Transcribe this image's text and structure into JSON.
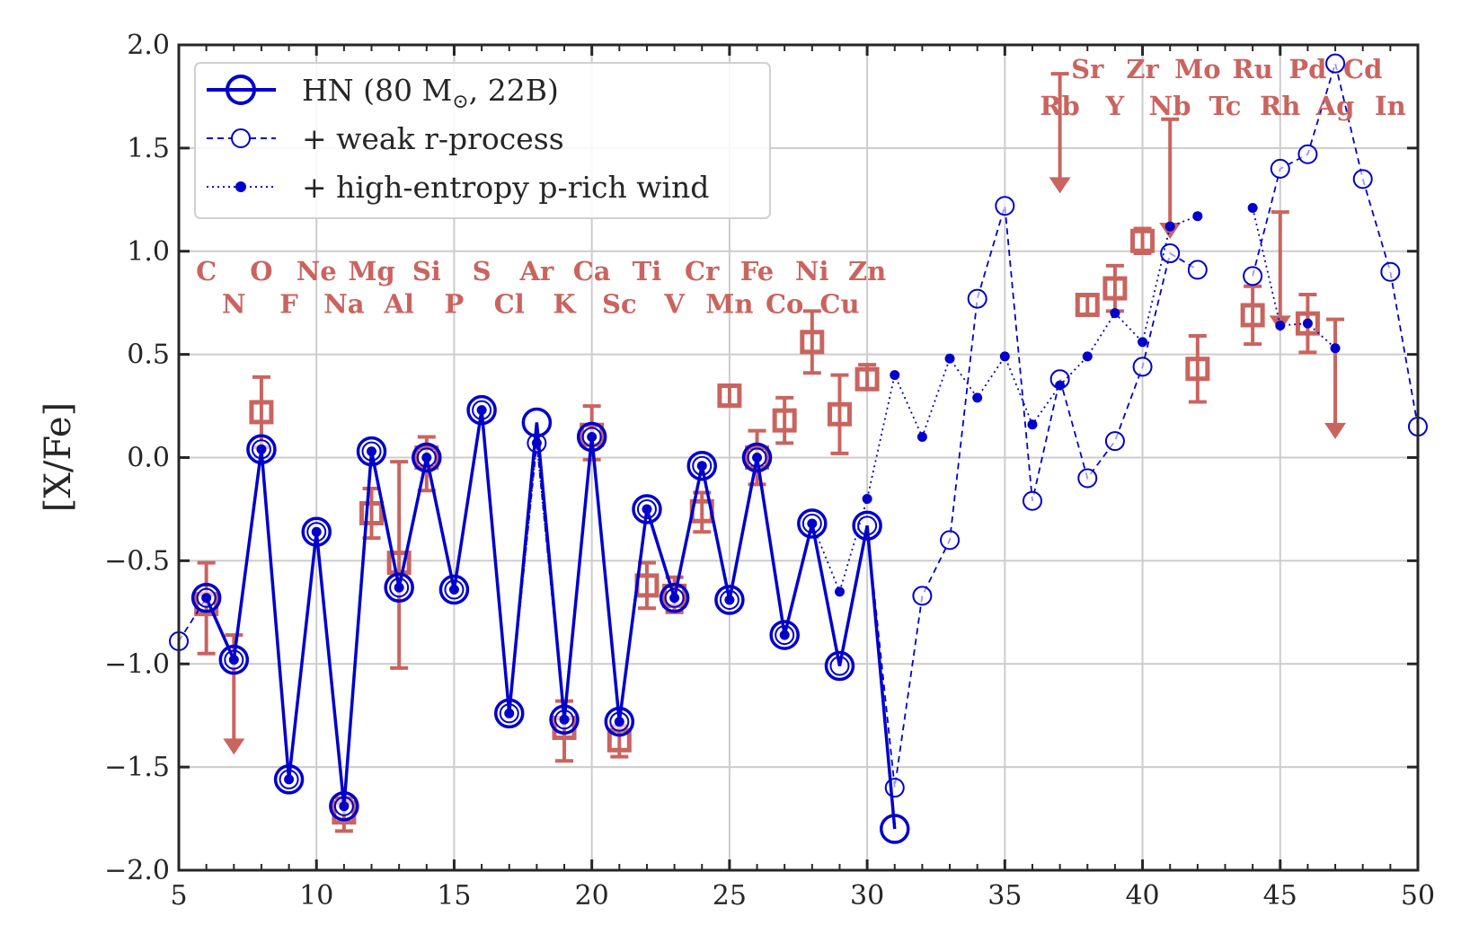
{
  "chart_data": {
    "type": "line",
    "title": "",
    "xlabel": "",
    "ylabel": "[X/Fe]",
    "xlim": [
      5,
      50
    ],
    "ylim": [
      -2.0,
      2.0
    ],
    "xticks": [
      "5",
      "10",
      "15",
      "20",
      "25",
      "30",
      "35",
      "40",
      "45",
      "50"
    ],
    "yticks": [
      "−2.0",
      "−1.5",
      "−1.0",
      "−0.5",
      "0.0",
      "0.5",
      "1.0",
      "1.5",
      "2.0"
    ],
    "grid": true,
    "legend_position": "top-left",
    "colors": {
      "model": "#0000cc",
      "observation": "#c9645f",
      "grid": "#cccccc"
    },
    "legend": [
      {
        "label": "HN (80 M",
        "sub": "⊙",
        "label_end": ", 22B)",
        "style": "solid-large-open-circle"
      },
      {
        "label": "+ weak r-process",
        "style": "dashed-open-circle"
      },
      {
        "label": "+ high-entropy p-rich wind",
        "style": "dotted-filled-dot"
      }
    ],
    "series": [
      {
        "name": "HN (80 M⊙, 22B)",
        "x": [
          6,
          7,
          8,
          9,
          10,
          11,
          12,
          13,
          14,
          15,
          16,
          17,
          18,
          19,
          20,
          21,
          22,
          23,
          24,
          25,
          26,
          27,
          28,
          29,
          30,
          31
        ],
        "y": [
          -0.68,
          -0.98,
          0.04,
          -1.56,
          -0.36,
          -1.69,
          0.03,
          -0.63,
          0.0,
          -0.64,
          0.23,
          -1.24,
          0.17,
          -1.27,
          0.1,
          -1.28,
          -0.25,
          -0.68,
          -0.04,
          -0.69,
          0.0,
          -0.86,
          -0.32,
          -1.01,
          -0.33,
          -1.8
        ]
      },
      {
        "name": "+ weak r-process",
        "x": [
          5,
          6,
          7,
          8,
          9,
          10,
          11,
          12,
          13,
          14,
          15,
          16,
          17,
          18,
          19,
          20,
          21,
          22,
          23,
          24,
          25,
          26,
          27,
          28,
          29,
          30,
          31,
          32,
          33,
          34,
          35,
          36,
          37,
          38,
          39,
          40,
          41,
          42,
          null,
          44,
          45,
          46,
          47,
          48,
          49,
          50
        ],
        "y": [
          -0.89,
          -0.68,
          -0.98,
          0.04,
          -1.56,
          -0.36,
          -1.69,
          0.03,
          -0.63,
          0.0,
          -0.64,
          0.23,
          -1.24,
          0.07,
          -1.27,
          0.1,
          -1.28,
          -0.25,
          -0.68,
          -0.04,
          -0.69,
          0.0,
          -0.86,
          -0.32,
          -1.01,
          -0.33,
          -1.6,
          -0.67,
          -0.4,
          0.77,
          1.22,
          -0.21,
          0.38,
          -0.1,
          0.08,
          0.44,
          0.99,
          0.91,
          null,
          0.88,
          1.4,
          1.47,
          1.91,
          1.35,
          0.9,
          0.15
        ]
      },
      {
        "name": "+ high-entropy p-rich wind",
        "x": [
          6,
          7,
          8,
          9,
          10,
          11,
          12,
          13,
          14,
          15,
          16,
          17,
          18,
          19,
          20,
          21,
          22,
          23,
          24,
          25,
          26,
          27,
          28,
          29,
          30,
          31,
          32,
          33,
          34,
          35,
          36,
          37,
          38,
          39,
          40,
          41,
          42,
          null,
          44,
          45,
          46,
          47
        ],
        "y": [
          -0.68,
          -0.98,
          0.04,
          -1.56,
          -0.36,
          -1.69,
          0.03,
          -0.63,
          0.0,
          -0.64,
          0.23,
          -1.24,
          0.07,
          -1.27,
          0.1,
          -1.28,
          -0.25,
          -0.68,
          -0.04,
          -0.69,
          0.0,
          -0.86,
          -0.32,
          -0.65,
          -0.2,
          0.4,
          0.1,
          0.48,
          0.29,
          0.49,
          0.16,
          0.35,
          0.49,
          0.7,
          0.56,
          1.12,
          1.17,
          null,
          1.21,
          0.64,
          0.65,
          0.53
        ]
      }
    ],
    "observations": [
      {
        "x": 6,
        "y": -0.71,
        "lo": -0.95,
        "hi": -0.51
      },
      {
        "x": 7,
        "upper_limit": -0.86
      },
      {
        "x": 8,
        "y": 0.22,
        "lo": 0.05,
        "hi": 0.39
      },
      {
        "x": 11,
        "y": -1.72,
        "lo": -1.81,
        "hi": -1.65
      },
      {
        "x": 12,
        "y": -0.27,
        "lo": -0.39,
        "hi": -0.15
      },
      {
        "x": 13,
        "y": -0.51,
        "lo": -1.02,
        "hi": -0.02
      },
      {
        "x": 14,
        "y": 0.0,
        "lo": -0.16,
        "hi": 0.1
      },
      {
        "x": 19,
        "y": -1.31,
        "lo": -1.47,
        "hi": -1.18
      },
      {
        "x": 20,
        "y": 0.11,
        "lo": -0.01,
        "hi": 0.25
      },
      {
        "x": 21,
        "y": -1.37,
        "lo": -1.45,
        "hi": -1.3
      },
      {
        "x": 22,
        "y": -0.62,
        "lo": -0.73,
        "hi": -0.51
      },
      {
        "x": 23,
        "y": -0.67,
        "lo": -0.75,
        "hi": -0.58
      },
      {
        "x": 24,
        "y": -0.26,
        "lo": -0.36,
        "hi": -0.17
      },
      {
        "x": 25,
        "y": 0.3,
        "lo": 0.25,
        "hi": 0.35
      },
      {
        "x": 26,
        "y": 0.0,
        "lo": -0.13,
        "hi": 0.13
      },
      {
        "x": 27,
        "y": 0.18,
        "lo": 0.07,
        "hi": 0.29
      },
      {
        "x": 28,
        "y": 0.56,
        "lo": 0.41,
        "hi": 0.71
      },
      {
        "x": 29,
        "y": 0.21,
        "lo": 0.02,
        "hi": 0.4
      },
      {
        "x": 30,
        "y": 0.38,
        "lo": 0.33,
        "hi": 0.45
      },
      {
        "x": 37,
        "upper_limit": 1.86
      },
      {
        "x": 38,
        "y": 0.74,
        "lo": 0.69,
        "hi": 0.79
      },
      {
        "x": 39,
        "y": 0.82,
        "lo": 0.71,
        "hi": 0.93
      },
      {
        "x": 40,
        "y": 1.05,
        "lo": 0.99,
        "hi": 1.11
      },
      {
        "x": 41,
        "upper_limit": 1.64
      },
      {
        "x": 42,
        "y": 0.43,
        "lo": 0.27,
        "hi": 0.59
      },
      {
        "x": 44,
        "y": 0.69,
        "lo": 0.55,
        "hi": 0.83
      },
      {
        "x": 45,
        "upper_limit": 1.19
      },
      {
        "x": 46,
        "y": 0.65,
        "lo": 0.51,
        "hi": 0.79
      },
      {
        "x": 47,
        "upper_limit": 0.67
      }
    ],
    "element_labels": {
      "row1": [
        [
          "C",
          6
        ],
        [
          "O",
          8
        ],
        [
          "Ne",
          10
        ],
        [
          "Mg",
          12
        ],
        [
          "Si",
          14
        ],
        [
          "S",
          16
        ],
        [
          "Ar",
          18
        ],
        [
          "Ca",
          20
        ],
        [
          "Ti",
          22
        ],
        [
          "Cr",
          24
        ],
        [
          "Fe",
          26
        ],
        [
          "Ni",
          28
        ],
        [
          "Zn",
          30
        ]
      ],
      "row2": [
        [
          "N",
          7
        ],
        [
          "F",
          9
        ],
        [
          "Na",
          11
        ],
        [
          "Al",
          13
        ],
        [
          "P",
          15
        ],
        [
          "Cl",
          17
        ],
        [
          "K",
          19
        ],
        [
          "Sc",
          21
        ],
        [
          "V",
          23
        ],
        [
          "Mn",
          25
        ],
        [
          "Co",
          27
        ],
        [
          "Cu",
          29
        ]
      ],
      "row3": [
        [
          "Sr",
          38
        ],
        [
          "Zr",
          40
        ],
        [
          "Mo",
          42
        ],
        [
          "Ru",
          44
        ],
        [
          "Pd",
          46
        ],
        [
          "Cd",
          48
        ]
      ],
      "row4": [
        [
          "Rb",
          37
        ],
        [
          "Y",
          39
        ],
        [
          "Nb",
          41
        ],
        [
          "Tc",
          43
        ],
        [
          "Rh",
          45
        ],
        [
          "Ag",
          47
        ],
        [
          "In",
          49
        ]
      ]
    }
  }
}
